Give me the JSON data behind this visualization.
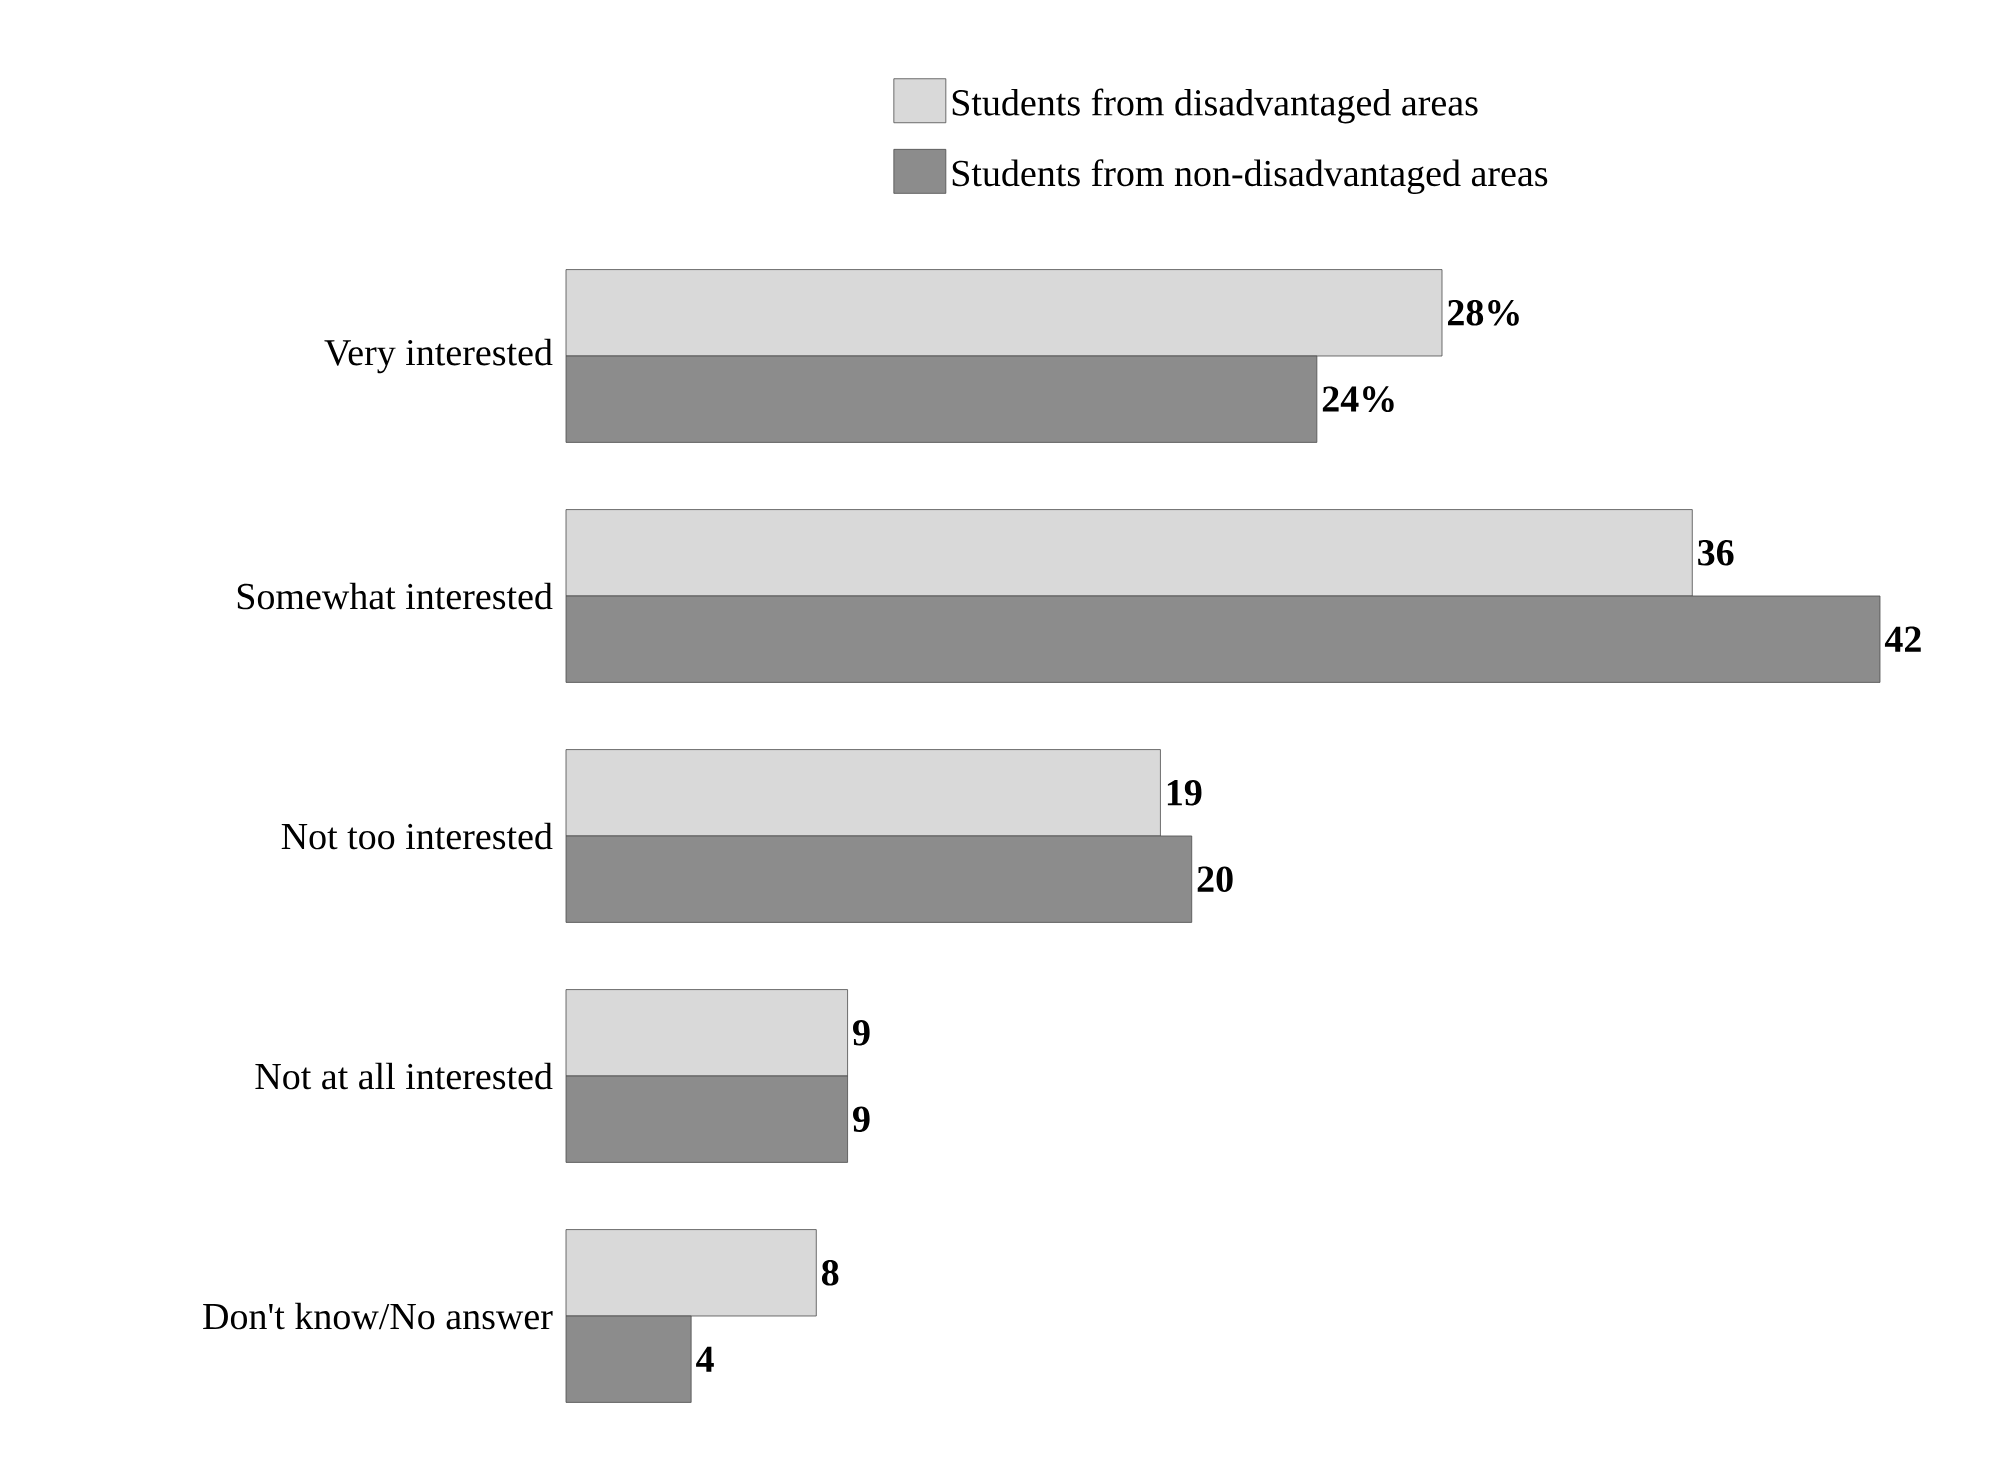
{
  "chart_data": {
    "type": "bar",
    "orientation": "horizontal",
    "legend": "top",
    "categories": [
      "Very interested",
      "Somewhat interested",
      "Not too interested",
      "Not at all interested",
      "Don't know/No answer"
    ],
    "series": [
      {
        "name": "Students from disadvantaged areas",
        "color": "#d9d9d9",
        "values": [
          28,
          36,
          19,
          9,
          8
        ],
        "value_labels": [
          "28%",
          "36",
          "19",
          "9",
          "8"
        ]
      },
      {
        "name": "Students from non-disadvantaged areas",
        "color": "#8c8c8c",
        "values": [
          24,
          42,
          20,
          9,
          4
        ],
        "value_labels": [
          "24%",
          "42",
          "20",
          "9",
          "4"
        ]
      }
    ]
  }
}
